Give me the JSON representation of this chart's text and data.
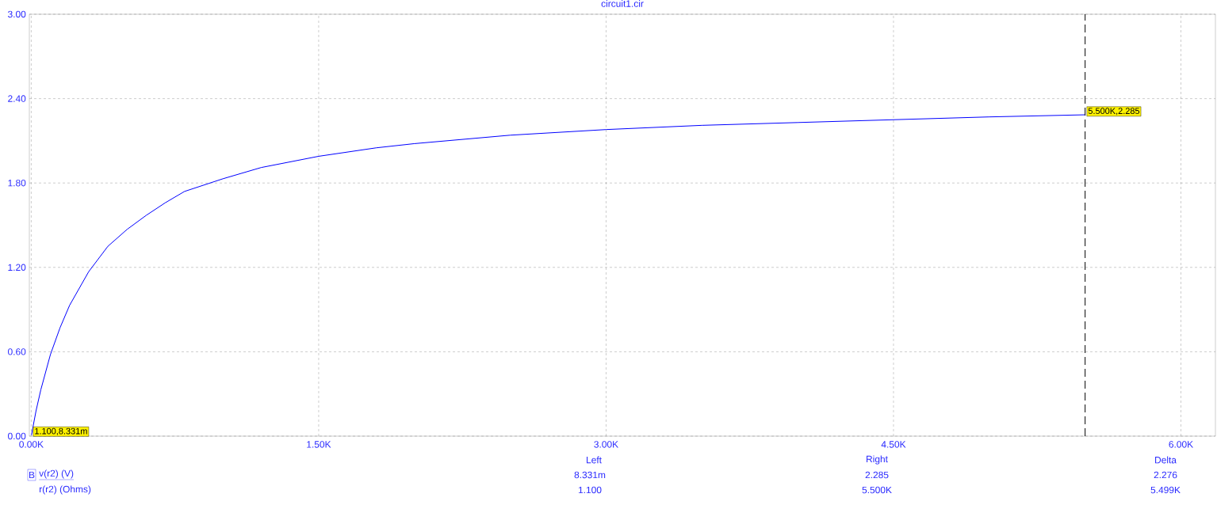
{
  "chart_data": {
    "type": "line",
    "title": "circuit1.cir",
    "xlabel": "r(r2) (Ohms)",
    "x": [
      1.1,
      25,
      50,
      100,
      150,
      200,
      300,
      400,
      500,
      600,
      700,
      800,
      1000,
      1200,
      1500,
      1800,
      2000,
      2500,
      3000,
      3500,
      4000,
      4500,
      5000,
      5500
    ],
    "series": [
      {
        "name": "v(r2) (V)",
        "color": "#0000ff",
        "values": [
          0.008331,
          0.18,
          0.33,
          0.58,
          0.77,
          0.93,
          1.17,
          1.35,
          1.47,
          1.57,
          1.66,
          1.74,
          1.83,
          1.91,
          1.99,
          2.05,
          2.08,
          2.14,
          2.18,
          2.21,
          2.23,
          2.25,
          2.27,
          2.285
        ]
      }
    ],
    "xlim": [
      -10,
      6180
    ],
    "ylim": [
      0,
      3
    ],
    "xticks": [
      {
        "value": 0,
        "label": "0.00K"
      },
      {
        "value": 1500,
        "label": "1.50K"
      },
      {
        "value": 3000,
        "label": "3.00K"
      },
      {
        "value": 4500,
        "label": "4.50K"
      },
      {
        "value": 6000,
        "label": "6.00K"
      }
    ],
    "yticks": [
      {
        "value": 0,
        "label": "0.00"
      },
      {
        "value": 0.6,
        "label": "0.60"
      },
      {
        "value": 1.2,
        "label": "1.20"
      },
      {
        "value": 1.8,
        "label": "1.80"
      },
      {
        "value": 2.4,
        "label": "2.40"
      },
      {
        "value": 3,
        "label": "3.00"
      }
    ],
    "grid": true,
    "legend": "bottom left",
    "marker": "none",
    "line_style": "solid",
    "ref_lines": [
      {
        "axis": "x",
        "value": 5500,
        "color": "#000000",
        "line_style": "dashed"
      }
    ],
    "annotations": [
      {
        "text": "1.100,8.331m",
        "x": 1.1,
        "y": 0.008331
      },
      {
        "text": "5.500K,2.285",
        "x": 5500,
        "y": 2.285
      },
      "Left",
      "Right",
      "Delta",
      "B",
      "8.331m",
      "2.285",
      "2.276",
      "1.100",
      "5.500K",
      "5.499K"
    ]
  }
}
